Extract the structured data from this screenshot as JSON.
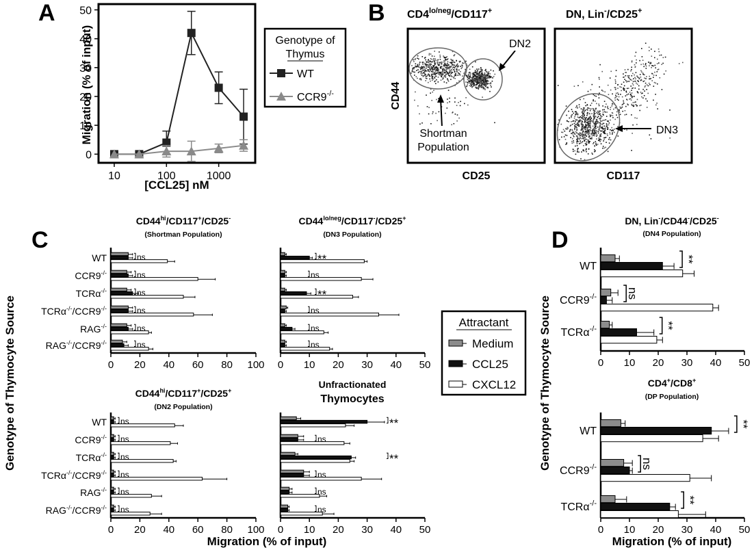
{
  "panel_letters": [
    "A",
    "B",
    "C",
    "D"
  ],
  "chart_data": [
    {
      "panel": "A",
      "type": "line",
      "xlabel": "[CCL25] nM",
      "ylabel": "Migration (% of input)",
      "x_scale": "log",
      "xlim": [
        5,
        5000
      ],
      "ylim": [
        -3,
        52
      ],
      "xticks": [
        10,
        100,
        1000
      ],
      "xtick_labels": [
        "10",
        "100",
        "1000"
      ],
      "yticks": [
        0,
        10,
        20,
        30,
        40,
        50
      ],
      "ytick_labels": [
        "0",
        "10",
        "20",
        "30",
        "40",
        "50"
      ],
      "legend_title": "Genotype of Thymus",
      "series": [
        {
          "name": "WT",
          "color": "#222222",
          "marker": "square",
          "x": [
            10,
            30,
            100,
            300,
            1000,
            3000
          ],
          "y": [
            0,
            0,
            4,
            42,
            23,
            13
          ],
          "err": [
            0,
            0,
            4,
            7.5,
            5.5,
            9.5
          ]
        },
        {
          "name": "CCR9-/-",
          "name_base": "CCR9",
          "name_sup": "-/-",
          "color": "#8a8a8a",
          "marker": "triangle",
          "x": [
            10,
            30,
            100,
            300,
            1000,
            3000
          ],
          "y": [
            0,
            0,
            1,
            1,
            2,
            3
          ],
          "err": [
            0,
            0,
            2,
            3.5,
            1.5,
            2
          ]
        }
      ]
    },
    {
      "panel": "C",
      "type": "bar",
      "subtitle": "(Shortman Population)",
      "title_parts": [
        [
          "CD44",
          ""
        ],
        [
          "hi",
          "sup"
        ],
        [
          "/CD117",
          ""
        ],
        [
          "+",
          "sup"
        ],
        [
          "/CD25",
          ""
        ],
        [
          "-",
          "sup"
        ]
      ],
      "xlim": [
        0,
        100
      ],
      "xticks": [
        0,
        20,
        40,
        60,
        80,
        100
      ],
      "categories": [
        [
          [
            "WT",
            ""
          ]
        ],
        [
          [
            "CCR9",
            ""
          ],
          [
            "-/-",
            "sup"
          ]
        ],
        [
          [
            "TCRα",
            ""
          ],
          [
            "-/-",
            "sup"
          ]
        ],
        [
          [
            "TCRα",
            ""
          ],
          [
            "-/-",
            "sup"
          ],
          [
            "/CCR9",
            ""
          ],
          [
            "-/-",
            "sup"
          ]
        ],
        [
          [
            "RAG",
            ""
          ],
          [
            "-/-",
            "sup"
          ]
        ],
        [
          [
            "RAG",
            ""
          ],
          [
            "-/-",
            "sup"
          ],
          [
            "/CCR9",
            ""
          ],
          [
            "-/-",
            "sup"
          ]
        ]
      ],
      "series": [
        {
          "name": "Medium",
          "values": [
            12,
            11,
            11,
            12,
            11,
            8
          ],
          "err": [
            3,
            3,
            3,
            3,
            3,
            3
          ]
        },
        {
          "name": "CCL25",
          "values": [
            12,
            12,
            15,
            12,
            12,
            9
          ],
          "err": [
            3,
            3,
            4,
            3,
            3,
            3
          ]
        },
        {
          "name": "CXCL12",
          "values": [
            39,
            60,
            50,
            57,
            26,
            26
          ],
          "err": [
            5,
            12,
            8,
            13,
            2,
            3
          ]
        }
      ],
      "annotations": [
        "ns",
        "ns",
        "ns",
        "ns",
        "ns",
        "ns"
      ],
      "show_xlabel": false,
      "show_ylabels": true
    },
    {
      "panel": "C",
      "type": "bar",
      "subtitle": "(DN3 Population)",
      "title_parts": [
        [
          "CD44",
          ""
        ],
        [
          "lo/neg",
          "sup"
        ],
        [
          "/CD117",
          ""
        ],
        [
          "-",
          "sup"
        ],
        [
          "/CD25",
          ""
        ],
        [
          "+",
          "sup"
        ]
      ],
      "xlim": [
        0,
        50
      ],
      "xticks": [
        0,
        10,
        20,
        30,
        40,
        50
      ],
      "categories": [
        [
          [
            "WT",
            ""
          ]
        ],
        [
          [
            "CCR9",
            ""
          ],
          [
            "-/-",
            "sup"
          ]
        ],
        [
          [
            "TCRα",
            ""
          ],
          [
            "-/-",
            "sup"
          ]
        ],
        [
          [
            "TCRα",
            ""
          ],
          [
            "-/-",
            "sup"
          ],
          [
            "/CCR9",
            ""
          ],
          [
            "-/-",
            "sup"
          ]
        ],
        [
          [
            "RAG",
            ""
          ],
          [
            "-/-",
            "sup"
          ]
        ],
        [
          [
            "RAG",
            ""
          ],
          [
            "-/-",
            "sup"
          ],
          [
            "/CCR9",
            ""
          ],
          [
            "-/-",
            "sup"
          ]
        ]
      ],
      "series": [
        {
          "name": "Medium",
          "values": [
            1.5,
            1.5,
            1.5,
            2,
            1.5,
            1.5
          ],
          "err": [
            0.5,
            0.5,
            0.5,
            0.5,
            0.5,
            0.5
          ]
        },
        {
          "name": "CCL25",
          "values": [
            10,
            1.5,
            9,
            1.5,
            4,
            1.5
          ],
          "err": [
            1,
            0.5,
            1.5,
            0.5,
            1,
            0.5
          ]
        },
        {
          "name": "CXCL12",
          "values": [
            29,
            28,
            25,
            34,
            15,
            17
          ],
          "err": [
            1,
            4,
            2,
            7,
            1.5,
            1
          ]
        }
      ],
      "annotations": [
        "**",
        "ns",
        "**",
        "ns",
        "ns",
        "ns"
      ],
      "show_xlabel": false,
      "show_ylabels": false
    },
    {
      "panel": "C",
      "type": "bar",
      "subtitle": "(DN2 Population)",
      "title_parts": [
        [
          "CD44",
          ""
        ],
        [
          "hi",
          "sup"
        ],
        [
          "/CD117",
          ""
        ],
        [
          "+",
          "sup"
        ],
        [
          "/CD25",
          ""
        ],
        [
          "+",
          "sup"
        ]
      ],
      "xlim": [
        0,
        100
      ],
      "xticks": [
        0,
        20,
        40,
        60,
        80,
        100
      ],
      "categories": [
        [
          [
            "WT",
            ""
          ]
        ],
        [
          [
            "CCR9",
            ""
          ],
          [
            "-/-",
            "sup"
          ]
        ],
        [
          [
            "TCRα",
            ""
          ],
          [
            "-/-",
            "sup"
          ]
        ],
        [
          [
            "TCRα",
            ""
          ],
          [
            "-/-",
            "sup"
          ],
          [
            "/CCR9",
            ""
          ],
          [
            "-/-",
            "sup"
          ]
        ],
        [
          [
            "RAG",
            ""
          ],
          [
            "-/-",
            "sup"
          ]
        ],
        [
          [
            "RAG",
            ""
          ],
          [
            "-/-",
            "sup"
          ],
          [
            "/CCR9",
            ""
          ],
          [
            "-/-",
            "sup"
          ]
        ]
      ],
      "series": [
        {
          "name": "Medium",
          "values": [
            2,
            2,
            2,
            2,
            2,
            2
          ],
          "err": [
            1,
            1,
            1,
            1,
            1,
            1
          ]
        },
        {
          "name": "CCL25",
          "values": [
            2,
            2,
            2,
            2,
            2,
            2
          ],
          "err": [
            1,
            1,
            1,
            1,
            1,
            1
          ]
        },
        {
          "name": "CXCL12",
          "values": [
            44,
            41,
            43,
            63,
            28,
            27
          ],
          "err": [
            6,
            5,
            2,
            17,
            7,
            8
          ]
        }
      ],
      "annotations": [
        "ns",
        "ns",
        "ns",
        "ns",
        "ns",
        "ns"
      ],
      "show_xlabel": true,
      "show_ylabels": true
    },
    {
      "panel": "C",
      "type": "bar",
      "subtitle": "Thymocytes",
      "title_parts": [
        [
          "Unfractionated",
          ""
        ]
      ],
      "xlim": [
        0,
        50
      ],
      "xticks": [
        0,
        10,
        20,
        30,
        40,
        50
      ],
      "categories": [
        [
          [
            "WT",
            ""
          ]
        ],
        [
          [
            "CCR9",
            ""
          ],
          [
            "-/-",
            "sup"
          ]
        ],
        [
          [
            "TCRα",
            ""
          ],
          [
            "-/-",
            "sup"
          ]
        ],
        [
          [
            "TCRα",
            ""
          ],
          [
            "-/-",
            "sup"
          ],
          [
            "/CCR9",
            ""
          ],
          [
            "-/-",
            "sup"
          ]
        ],
        [
          [
            "RAG",
            ""
          ],
          [
            "-/-",
            "sup"
          ]
        ],
        [
          [
            "RAG",
            ""
          ],
          [
            "-/-",
            "sup"
          ],
          [
            "/CCR9",
            ""
          ],
          [
            "-/-",
            "sup"
          ]
        ]
      ],
      "series": [
        {
          "name": "Medium",
          "values": [
            5.5,
            6,
            5,
            8,
            3,
            2.5
          ],
          "err": [
            1.5,
            2,
            1,
            2,
            1,
            0.5
          ]
        },
        {
          "name": "CCL25",
          "values": [
            30,
            6,
            24.5,
            8,
            3,
            2.5
          ],
          "err": [
            6,
            2,
            1.5,
            2,
            1,
            0.5
          ]
        },
        {
          "name": "CXCL12",
          "values": [
            22.5,
            22,
            24,
            28,
            13.5,
            14.5
          ],
          "err": [
            3,
            2,
            1.5,
            7,
            2.5,
            4
          ]
        }
      ],
      "annotations": [
        "**",
        "ns",
        "**",
        "ns",
        "ns",
        "ns"
      ],
      "show_xlabel": true,
      "show_ylabels": false
    },
    {
      "panel": "D",
      "type": "bar",
      "subtitle": "(DN4 Population)",
      "title_parts": [
        [
          "DN, Lin",
          ""
        ],
        [
          "-",
          "sup"
        ],
        [
          "/CD44",
          ""
        ],
        [
          "-",
          "sup"
        ],
        [
          "/CD25",
          ""
        ],
        [
          "-",
          "sup"
        ]
      ],
      "xlim": [
        0,
        50
      ],
      "xticks": [
        0,
        10,
        20,
        30,
        40,
        50
      ],
      "categories": [
        [
          [
            "WT",
            ""
          ]
        ],
        [
          [
            "CCR9",
            ""
          ],
          [
            "-/-",
            "sup"
          ]
        ],
        [
          [
            "TCRα",
            ""
          ],
          [
            "-/-",
            "sup"
          ]
        ]
      ],
      "series": [
        {
          "name": "Medium",
          "values": [
            5,
            3.5,
            3
          ],
          "err": [
            1.5,
            2.5,
            1
          ]
        },
        {
          "name": "CCL25",
          "values": [
            21.5,
            2,
            12.5
          ],
          "err": [
            4,
            2,
            6
          ]
        },
        {
          "name": "CXCL12",
          "values": [
            28.5,
            39,
            19.5
          ],
          "err": [
            4,
            2,
            2
          ]
        }
      ],
      "annotations": [
        "**",
        "ns",
        "**"
      ],
      "show_xlabel": false,
      "show_ylabels": true
    },
    {
      "panel": "D",
      "type": "bar",
      "subtitle": "(DP Population)",
      "title_parts": [
        [
          "CD4",
          ""
        ],
        [
          "+",
          "sup"
        ],
        [
          "/CD8",
          ""
        ],
        [
          "+",
          "sup"
        ]
      ],
      "xlim": [
        0,
        50
      ],
      "xticks": [
        0,
        10,
        20,
        30,
        40,
        50
      ],
      "categories": [
        [
          [
            "WT",
            ""
          ]
        ],
        [
          [
            "CCR9",
            ""
          ],
          [
            "-/-",
            "sup"
          ]
        ],
        [
          [
            "TCRα",
            ""
          ],
          [
            "-/-",
            "sup"
          ]
        ]
      ],
      "series": [
        {
          "name": "Medium",
          "values": [
            7,
            8,
            5
          ],
          "err": [
            1.5,
            3,
            4
          ]
        },
        {
          "name": "CCL25",
          "values": [
            38.5,
            10,
            24
          ],
          "err": [
            6,
            1,
            2
          ]
        },
        {
          "name": "CXCL12",
          "values": [
            35.5,
            31,
            27
          ],
          "err": [
            5.5,
            7.5,
            9.5
          ]
        }
      ],
      "annotations": [
        "**",
        "ns",
        "**"
      ],
      "show_xlabel": true,
      "show_ylabels": true
    }
  ],
  "panel_c_d_ylabel": "Genotype of Thymocyte Source",
  "panel_c_xlabel": "Migration (% of input)",
  "panel_d_xlabel": "Migration (% of input)",
  "bar_colors": {
    "Medium": "#8c8c8c",
    "CCL25": "#111111",
    "CXCL12": "#ffffff"
  },
  "legend_c": {
    "title": "Attractant",
    "items": [
      "Medium",
      "CCL25",
      "CXCL12"
    ]
  },
  "flow": {
    "plot1_title_parts": [
      [
        "CD4",
        ""
      ],
      [
        "lo/neg",
        "sup"
      ],
      [
        "/CD117",
        ""
      ],
      [
        "+",
        "sup"
      ]
    ],
    "plot2_title_parts": [
      [
        "DN, Lin",
        ""
      ],
      [
        "-",
        "sup"
      ],
      [
        "/CD25",
        ""
      ],
      [
        "+",
        "sup"
      ]
    ],
    "plot1_ylabel": "CD44",
    "plot1_xlabel": "CD25",
    "plot2_xlabel": "CD117",
    "label_dn2": "DN2",
    "label_shortman": "Shortman\nPopulation",
    "label_dn3": "DN3"
  }
}
